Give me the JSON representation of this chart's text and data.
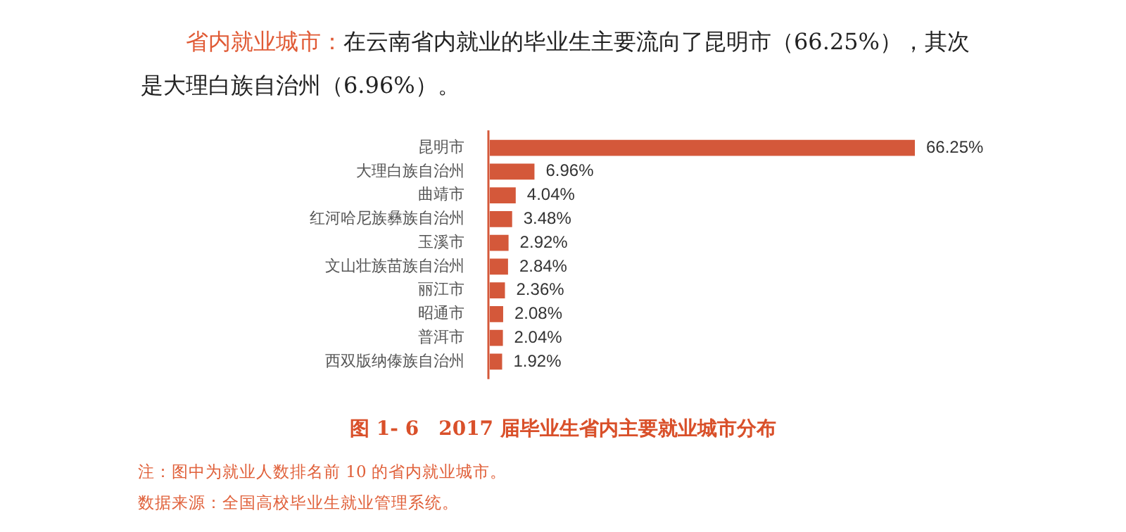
{
  "chart_data": {
    "type": "bar",
    "orientation": "horizontal",
    "title": "图 1- 6　2017 届毕业生省内主要就业城市分布",
    "categories": [
      "昆明市",
      "大理白族自治州",
      "曲靖市",
      "红河哈尼族彝族自治州",
      "玉溪市",
      "文山壮族苗族自治州",
      "丽江市",
      "昭通市",
      "普洱市",
      "西双版纳傣族自治州"
    ],
    "values": [
      66.25,
      6.96,
      4.04,
      3.48,
      2.92,
      2.84,
      2.36,
      2.08,
      2.04,
      1.92
    ],
    "value_labels": [
      "66.25%",
      "6.96%",
      "4.04%",
      "3.48%",
      "2.92%",
      "2.84%",
      "2.36%",
      "2.08%",
      "2.04%",
      "1.92%"
    ],
    "color": "#d4583a",
    "legend": false,
    "tick_labels": "y",
    "annotations": [
      "省内就业城市：",
      "在云南省内就业的毕业生主要流向了昆明市（66.25%），其次是大理白族自治州（6.96%）。",
      "注：图中为就业人数排名前 10 的省内就业城市。",
      "数据来源：全国高校毕业生就业管理系统。"
    ]
  }
}
